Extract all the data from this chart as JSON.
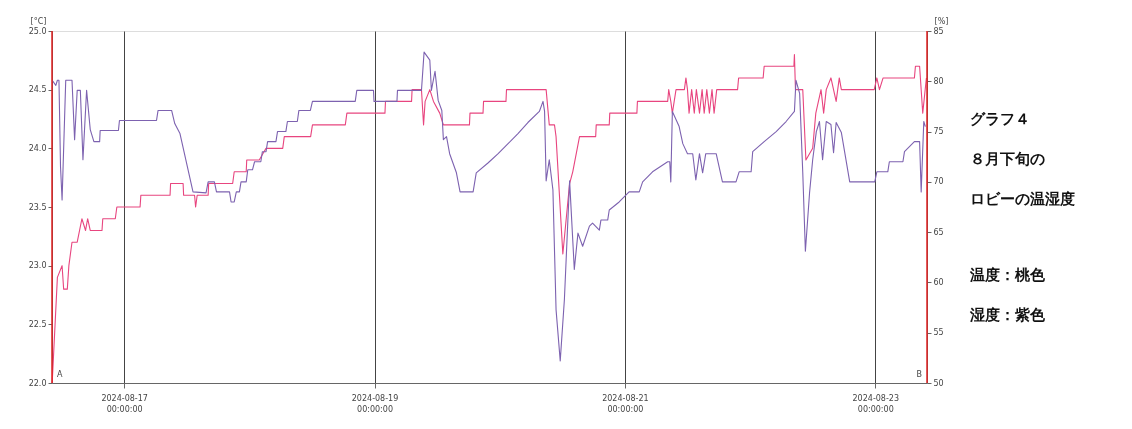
{
  "chart_data": {
    "type": "line",
    "ylabel": "[°C]",
    "y2label": "[%]",
    "xlim": [
      "2024-08-16T10:10",
      "2024-08-23T09:55"
    ],
    "xticks": [
      {
        "value": "2024-08-17",
        "label": "2024-08-17\n00:00:00"
      },
      {
        "value": "2024-08-19",
        "label": "2024-08-19\n00:00:00"
      },
      {
        "value": "2024-08-21",
        "label": "2024-08-21\n00:00:00"
      },
      {
        "value": "2024-08-23",
        "label": "2024-08-23\n00:00:00"
      }
    ],
    "ylim": [
      22.0,
      25.0
    ],
    "yticks": [
      {
        "value": 22,
        "label": "22.0"
      },
      {
        "value": 22.5,
        "label": "22.5"
      },
      {
        "value": 23,
        "label": "23.0"
      },
      {
        "value": 23.5,
        "label": "23.5"
      },
      {
        "value": 24,
        "label": "24.0"
      },
      {
        "value": 24.5,
        "label": "24.5"
      },
      {
        "value": 25,
        "label": "25.0"
      }
    ],
    "y2lim": [
      50,
      85
    ],
    "y2ticks": [
      50,
      55,
      60,
      65,
      70,
      75,
      80,
      85
    ],
    "grid": "x",
    "ref_lines": [
      {
        "axis": "x",
        "value": "2024-08-16T10:10",
        "label": "A",
        "color": "#e02020"
      },
      {
        "axis": "x",
        "value": "2024-08-23T09:55",
        "label": "B",
        "color": "#e02020"
      }
    ],
    "annotations": [
      "グラフ４",
      "８月下旬の",
      "ロビーの温湿度",
      "温度：桃色",
      "湿度：紫色"
    ],
    "series": [
      {
        "color": "#e8457f",
        "axis": "y",
        "x": [
          "2024-08-16T10:12",
          "2024-08-16T11:12",
          "2024-08-16T12:06",
          "2024-08-16T12:24",
          "2024-08-16T13:06",
          "2024-08-16T13:24",
          "2024-08-16T14:00",
          "2024-08-16T15:00",
          "2024-08-16T15:54",
          "2024-08-16T16:36",
          "2024-08-16T17:00",
          "2024-08-16T17:30",
          "2024-08-16T19:45",
          "2024-08-16T19:54",
          "2024-08-16T22:18",
          "2024-08-16T22:36",
          "2024-08-17T03:03",
          "2024-08-17T03:12",
          "2024-08-17T08:48",
          "2024-08-17T08:54",
          "2024-08-17T11:18",
          "2024-08-17T11:24",
          "2024-08-17T13:30",
          "2024-08-17T13:42",
          "2024-08-17T14:00",
          "2024-08-17T16:06",
          "2024-08-17T16:12",
          "2024-08-17T20:48",
          "2024-08-17T21:06",
          "2024-08-17T23:24",
          "2024-08-17T23:30",
          "2024-08-18T01:54",
          "2024-08-18T03:12",
          "2024-08-18T06:24",
          "2024-08-18T06:42",
          "2024-08-18T11:45",
          "2024-08-18T12:06",
          "2024-08-18T18:24",
          "2024-08-18T18:42",
          "2024-08-19T02:00",
          "2024-08-19T02:06",
          "2024-08-19T07:06",
          "2024-08-19T07:12",
          "2024-08-19T09:00",
          "2024-08-19T09:24",
          "2024-08-19T09:42",
          "2024-08-19T10:36",
          "2024-08-19T11:18",
          "2024-08-19T12:30",
          "2024-08-19T13:12",
          "2024-08-19T18:12",
          "2024-08-19T18:18",
          "2024-08-19T20:48",
          "2024-08-19T20:54",
          "2024-08-20T01:12",
          "2024-08-20T01:18",
          "2024-08-20T08:54",
          "2024-08-20T09:30",
          "2024-08-20T10:30",
          "2024-08-20T10:48",
          "2024-08-20T12:06",
          "2024-08-20T13:24",
          "2024-08-20T14:00",
          "2024-08-20T15:18",
          "2024-08-20T18:24",
          "2024-08-20T18:30",
          "2024-08-20T21:00",
          "2024-08-20T21:06",
          "2024-08-21T02:18",
          "2024-08-21T02:24",
          "2024-08-21T08:12",
          "2024-08-21T08:24",
          "2024-08-21T08:48",
          "2024-08-21T09:06",
          "2024-08-21T09:48",
          "2024-08-21T11:24",
          "2024-08-21T11:42",
          "2024-08-21T12:00",
          "2024-08-21T12:18",
          "2024-08-21T12:48",
          "2024-08-21T13:18",
          "2024-08-21T13:42",
          "2024-08-21T14:18",
          "2024-08-21T14:48",
          "2024-08-21T15:12",
          "2024-08-21T15:42",
          "2024-08-21T16:12",
          "2024-08-21T16:42",
          "2024-08-21T17:06",
          "2024-08-21T17:36",
          "2024-08-21T21:36",
          "2024-08-21T21:48",
          "2024-08-22T02:30",
          "2024-08-22T02:42",
          "2024-08-22T08:24",
          "2024-08-22T08:30",
          "2024-08-22T08:42",
          "2024-08-22T10:06",
          "2024-08-22T10:42",
          "2024-08-22T12:00",
          "2024-08-22T12:36",
          "2024-08-22T13:36",
          "2024-08-22T14:06",
          "2024-08-22T14:36",
          "2024-08-22T15:30",
          "2024-08-22T16:30",
          "2024-08-22T17:06",
          "2024-08-22T17:30",
          "2024-08-22T23:48",
          "2024-08-23T00:18",
          "2024-08-23T00:48",
          "2024-08-23T01:30",
          "2024-08-23T07:30",
          "2024-08-23T07:42",
          "2024-08-23T08:30",
          "2024-08-23T09:06",
          "2024-08-23T09:48"
        ],
        "values": [
          22.0,
          22.9,
          23.0,
          22.8,
          22.8,
          23.0,
          23.2,
          23.2,
          23.4,
          23.3,
          23.4,
          23.3,
          23.3,
          23.4,
          23.4,
          23.5,
          23.5,
          23.6,
          23.6,
          23.7,
          23.7,
          23.6,
          23.6,
          23.5,
          23.6,
          23.6,
          23.7,
          23.7,
          23.8,
          23.8,
          23.9,
          23.9,
          24.0,
          24.0,
          24.1,
          24.1,
          24.2,
          24.2,
          24.3,
          24.3,
          24.4,
          24.4,
          24.5,
          24.5,
          24.2,
          24.4,
          24.5,
          24.4,
          24.3,
          24.2,
          24.2,
          24.3,
          24.3,
          24.4,
          24.4,
          24.5,
          24.5,
          24.2,
          24.2,
          24.1,
          23.1,
          23.7,
          23.8,
          24.1,
          24.1,
          24.2,
          24.2,
          24.3,
          24.3,
          24.4,
          24.4,
          24.5,
          24.4,
          24.3,
          24.5,
          24.5,
          24.6,
          24.5,
          24.3,
          24.5,
          24.3,
          24.5,
          24.3,
          24.5,
          24.3,
          24.5,
          24.3,
          24.5,
          24.3,
          24.5,
          24.5,
          24.6,
          24.6,
          24.7,
          24.7,
          24.8,
          24.5,
          24.5,
          23.9,
          24.0,
          24.3,
          24.5,
          24.3,
          24.5,
          24.6,
          24.4,
          24.6,
          24.5,
          24.5,
          24.6,
          24.5,
          24.6,
          24.6,
          24.7,
          24.7,
          24.3,
          24.6
        ]
      },
      {
        "color": "#7d62b0",
        "axis": "y2",
        "x": [
          "2024-08-16T10:12",
          "2024-08-16T10:54",
          "2024-08-16T11:12",
          "2024-08-16T11:30",
          "2024-08-16T11:48",
          "2024-08-16T12:06",
          "2024-08-16T12:48",
          "2024-08-16T14:00",
          "2024-08-16T14:30",
          "2024-08-16T15:00",
          "2024-08-16T15:36",
          "2024-08-16T16:06",
          "2024-08-16T16:48",
          "2024-08-16T17:30",
          "2024-08-16T18:12",
          "2024-08-16T19:18",
          "2024-08-16T19:24",
          "2024-08-16T22:54",
          "2024-08-16T23:06",
          "2024-08-17T06:12",
          "2024-08-17T06:30",
          "2024-08-17T09:06",
          "2024-08-17T09:42",
          "2024-08-17T10:42",
          "2024-08-17T13:12",
          "2024-08-17T15:42",
          "2024-08-17T16:06",
          "2024-08-17T17:18",
          "2024-08-17T17:42",
          "2024-08-17T20:12",
          "2024-08-17T20:30",
          "2024-08-17T21:06",
          "2024-08-17T21:30",
          "2024-08-17T22:06",
          "2024-08-17T22:24",
          "2024-08-17T23:24",
          "2024-08-17T23:42",
          "2024-08-18T00:36",
          "2024-08-18T01:00",
          "2024-08-18T02:12",
          "2024-08-18T02:30",
          "2024-08-18T03:12",
          "2024-08-18T03:30",
          "2024-08-18T05:06",
          "2024-08-18T05:24",
          "2024-08-18T07:00",
          "2024-08-18T07:18",
          "2024-08-18T09:12",
          "2024-08-18T09:30",
          "2024-08-18T11:42",
          "2024-08-18T12:06",
          "2024-08-18T20:18",
          "2024-08-18T20:36",
          "2024-08-18T23:48",
          "2024-08-18T23:54",
          "2024-08-19T04:18",
          "2024-08-19T04:24",
          "2024-08-19T09:00",
          "2024-08-19T09:30",
          "2024-08-19T10:36",
          "2024-08-19T10:54",
          "2024-08-19T11:36",
          "2024-08-19T12:12",
          "2024-08-19T12:54",
          "2024-08-19T13:12",
          "2024-08-19T13:48",
          "2024-08-19T14:24",
          "2024-08-19T15:42",
          "2024-08-19T16:24",
          "2024-08-19T18:54",
          "2024-08-19T19:30",
          "2024-08-19T21:48",
          "2024-08-19T23:42",
          "2024-08-20T01:36",
          "2024-08-20T03:30",
          "2024-08-20T05:24",
          "2024-08-20T07:36",
          "2024-08-20T08:18",
          "2024-08-20T08:36",
          "2024-08-20T08:54",
          "2024-08-20T09:30",
          "2024-08-20T10:12",
          "2024-08-20T10:48",
          "2024-08-20T11:36",
          "2024-08-20T12:24",
          "2024-08-20T13:24",
          "2024-08-20T14:18",
          "2024-08-20T15:00",
          "2024-08-20T15:54",
          "2024-08-20T17:12",
          "2024-08-20T17:48",
          "2024-08-20T19:06",
          "2024-08-20T19:24",
          "2024-08-20T20:42",
          "2024-08-20T21:00",
          "2024-08-20T22:54",
          "2024-08-21T00:48",
          "2024-08-21T02:45",
          "2024-08-21T03:24",
          "2024-08-21T05:18",
          "2024-08-21T08:12",
          "2024-08-21T08:36",
          "2024-08-21T08:48",
          "2024-08-21T09:06",
          "2024-08-21T10:24",
          "2024-08-21T11:06",
          "2024-08-21T12:00",
          "2024-08-21T13:00",
          "2024-08-21T13:36",
          "2024-08-21T14:18",
          "2024-08-21T14:54",
          "2024-08-21T15:30",
          "2024-08-21T17:30",
          "2024-08-21T18:42",
          "2024-08-21T21:18",
          "2024-08-21T21:54",
          "2024-08-22T00:12",
          "2024-08-22T00:30",
          "2024-08-22T02:42",
          "2024-08-22T05:00",
          "2024-08-22T06:54",
          "2024-08-22T08:30",
          "2024-08-22T08:48",
          "2024-08-22T09:30",
          "2024-08-22T10:06",
          "2024-08-22T10:36",
          "2024-08-22T11:24",
          "2024-08-22T12:00",
          "2024-08-22T12:42",
          "2024-08-22T13:18",
          "2024-08-22T13:54",
          "2024-08-22T14:36",
          "2024-08-22T15:30",
          "2024-08-22T16:00",
          "2024-08-22T16:30",
          "2024-08-22T17:30",
          "2024-08-22T19:06",
          "2024-08-22T23:54",
          "2024-08-23T00:18",
          "2024-08-23T02:24",
          "2024-08-23T02:42",
          "2024-08-23T05:18",
          "2024-08-23T05:36",
          "2024-08-23T07:30",
          "2024-08-23T08:30",
          "2024-08-23T08:48",
          "2024-08-23T09:18",
          "2024-08-23T09:36"
        ],
        "values": [
          80.1,
          79.6,
          80.1,
          80.1,
          71.5,
          68.2,
          80.1,
          80.1,
          74.2,
          79.1,
          79.1,
          72.2,
          79.1,
          75.2,
          74.0,
          74.0,
          75.1,
          75.1,
          76.1,
          76.1,
          77.1,
          77.1,
          75.8,
          74.8,
          69.0,
          68.9,
          70.0,
          70.0,
          69.0,
          69.0,
          68.0,
          68.0,
          69.0,
          69.0,
          70.0,
          70.0,
          71.2,
          71.2,
          72.0,
          72.0,
          73.0,
          73.0,
          74.0,
          74.0,
          75.0,
          75.0,
          76.0,
          76.0,
          77.1,
          77.1,
          78.0,
          78.0,
          79.1,
          79.1,
          78.0,
          78.0,
          79.1,
          79.1,
          82.9,
          82.1,
          79.1,
          81.0,
          78.1,
          77.1,
          74.2,
          74.5,
          72.8,
          70.9,
          69.0,
          69.0,
          70.9,
          71.9,
          72.8,
          73.8,
          74.8,
          75.9,
          77.0,
          78.0,
          77.0,
          70.1,
          72.2,
          69.2,
          57.3,
          52.2,
          58.3,
          70.1,
          61.3,
          64.9,
          63.6,
          65.6,
          65.9,
          65.2,
          66.2,
          66.2,
          67.2,
          68.0,
          69.0,
          69.0,
          70.0,
          71.0,
          72.0,
          72.0,
          70.0,
          77.0,
          75.5,
          73.8,
          72.8,
          72.8,
          70.2,
          72.8,
          70.9,
          72.8,
          72.8,
          70.0,
          70.0,
          71.0,
          71.0,
          73.0,
          74.0,
          75.0,
          76.0,
          77.0,
          80.1,
          78.8,
          70.9,
          63.1,
          68.9,
          72.2,
          75.0,
          76.0,
          72.2,
          76.0,
          75.7,
          72.9,
          75.9,
          74.9,
          70.0,
          70.0,
          71.0,
          71.0,
          72.0,
          72.0,
          73.0,
          74.0,
          74.0,
          69.0,
          76.0,
          75.5
        ]
      }
    ]
  }
}
